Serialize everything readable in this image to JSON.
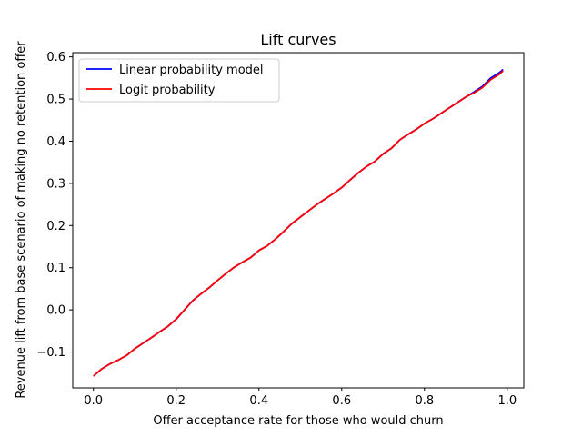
{
  "chart_data": {
    "type": "line",
    "title": "Lift curves",
    "xlabel": "Offer acceptance rate for those who would churn",
    "ylabel": "Revenue lift from base scenario of making no retention offer",
    "xlim": [
      -0.05,
      1.04
    ],
    "ylim": [
      -0.185,
      0.61
    ],
    "xticks": [
      0.0,
      0.2,
      0.4,
      0.6,
      0.8,
      1.0
    ],
    "xtick_labels": [
      "0.0",
      "0.2",
      "0.4",
      "0.6",
      "0.8",
      "1.0"
    ],
    "yticks": [
      -0.1,
      0.0,
      0.1,
      0.2,
      0.3,
      0.4,
      0.5,
      0.6
    ],
    "ytick_labels": [
      "−0.1",
      "0.0",
      "0.1",
      "0.2",
      "0.3",
      "0.4",
      "0.5",
      "0.6"
    ],
    "grid": false,
    "legend_position": "top-left",
    "x": [
      0.0,
      0.02,
      0.04,
      0.06,
      0.08,
      0.1,
      0.12,
      0.14,
      0.16,
      0.18,
      0.2,
      0.22,
      0.24,
      0.26,
      0.28,
      0.3,
      0.32,
      0.34,
      0.36,
      0.38,
      0.4,
      0.42,
      0.44,
      0.46,
      0.48,
      0.5,
      0.52,
      0.54,
      0.56,
      0.58,
      0.6,
      0.62,
      0.64,
      0.66,
      0.68,
      0.7,
      0.72,
      0.74,
      0.76,
      0.78,
      0.8,
      0.82,
      0.84,
      0.86,
      0.88,
      0.9,
      0.92,
      0.94,
      0.96,
      0.98,
      0.99
    ],
    "series": [
      {
        "name": "Linear probability model",
        "color": "#0000ff",
        "values": [
          -0.157,
          -0.14,
          -0.128,
          -0.119,
          -0.108,
          -0.092,
          -0.079,
          -0.066,
          -0.052,
          -0.039,
          -0.022,
          0.0,
          0.022,
          0.038,
          0.053,
          0.07,
          0.086,
          0.101,
          0.113,
          0.124,
          0.141,
          0.152,
          0.168,
          0.186,
          0.205,
          0.22,
          0.235,
          0.25,
          0.263,
          0.276,
          0.29,
          0.308,
          0.325,
          0.34,
          0.352,
          0.37,
          0.383,
          0.403,
          0.416,
          0.428,
          0.442,
          0.453,
          0.466,
          0.479,
          0.492,
          0.505,
          0.517,
          0.53,
          0.55,
          0.562,
          0.57
        ]
      },
      {
        "name": "Logit probability",
        "color": "#ff0000",
        "values": [
          -0.157,
          -0.14,
          -0.128,
          -0.119,
          -0.108,
          -0.092,
          -0.079,
          -0.066,
          -0.052,
          -0.039,
          -0.022,
          0.0,
          0.022,
          0.038,
          0.053,
          0.07,
          0.086,
          0.101,
          0.113,
          0.124,
          0.141,
          0.152,
          0.168,
          0.186,
          0.205,
          0.22,
          0.235,
          0.25,
          0.263,
          0.276,
          0.29,
          0.308,
          0.325,
          0.34,
          0.352,
          0.37,
          0.383,
          0.403,
          0.416,
          0.428,
          0.442,
          0.453,
          0.466,
          0.479,
          0.492,
          0.505,
          0.515,
          0.527,
          0.546,
          0.558,
          0.567
        ]
      }
    ]
  }
}
